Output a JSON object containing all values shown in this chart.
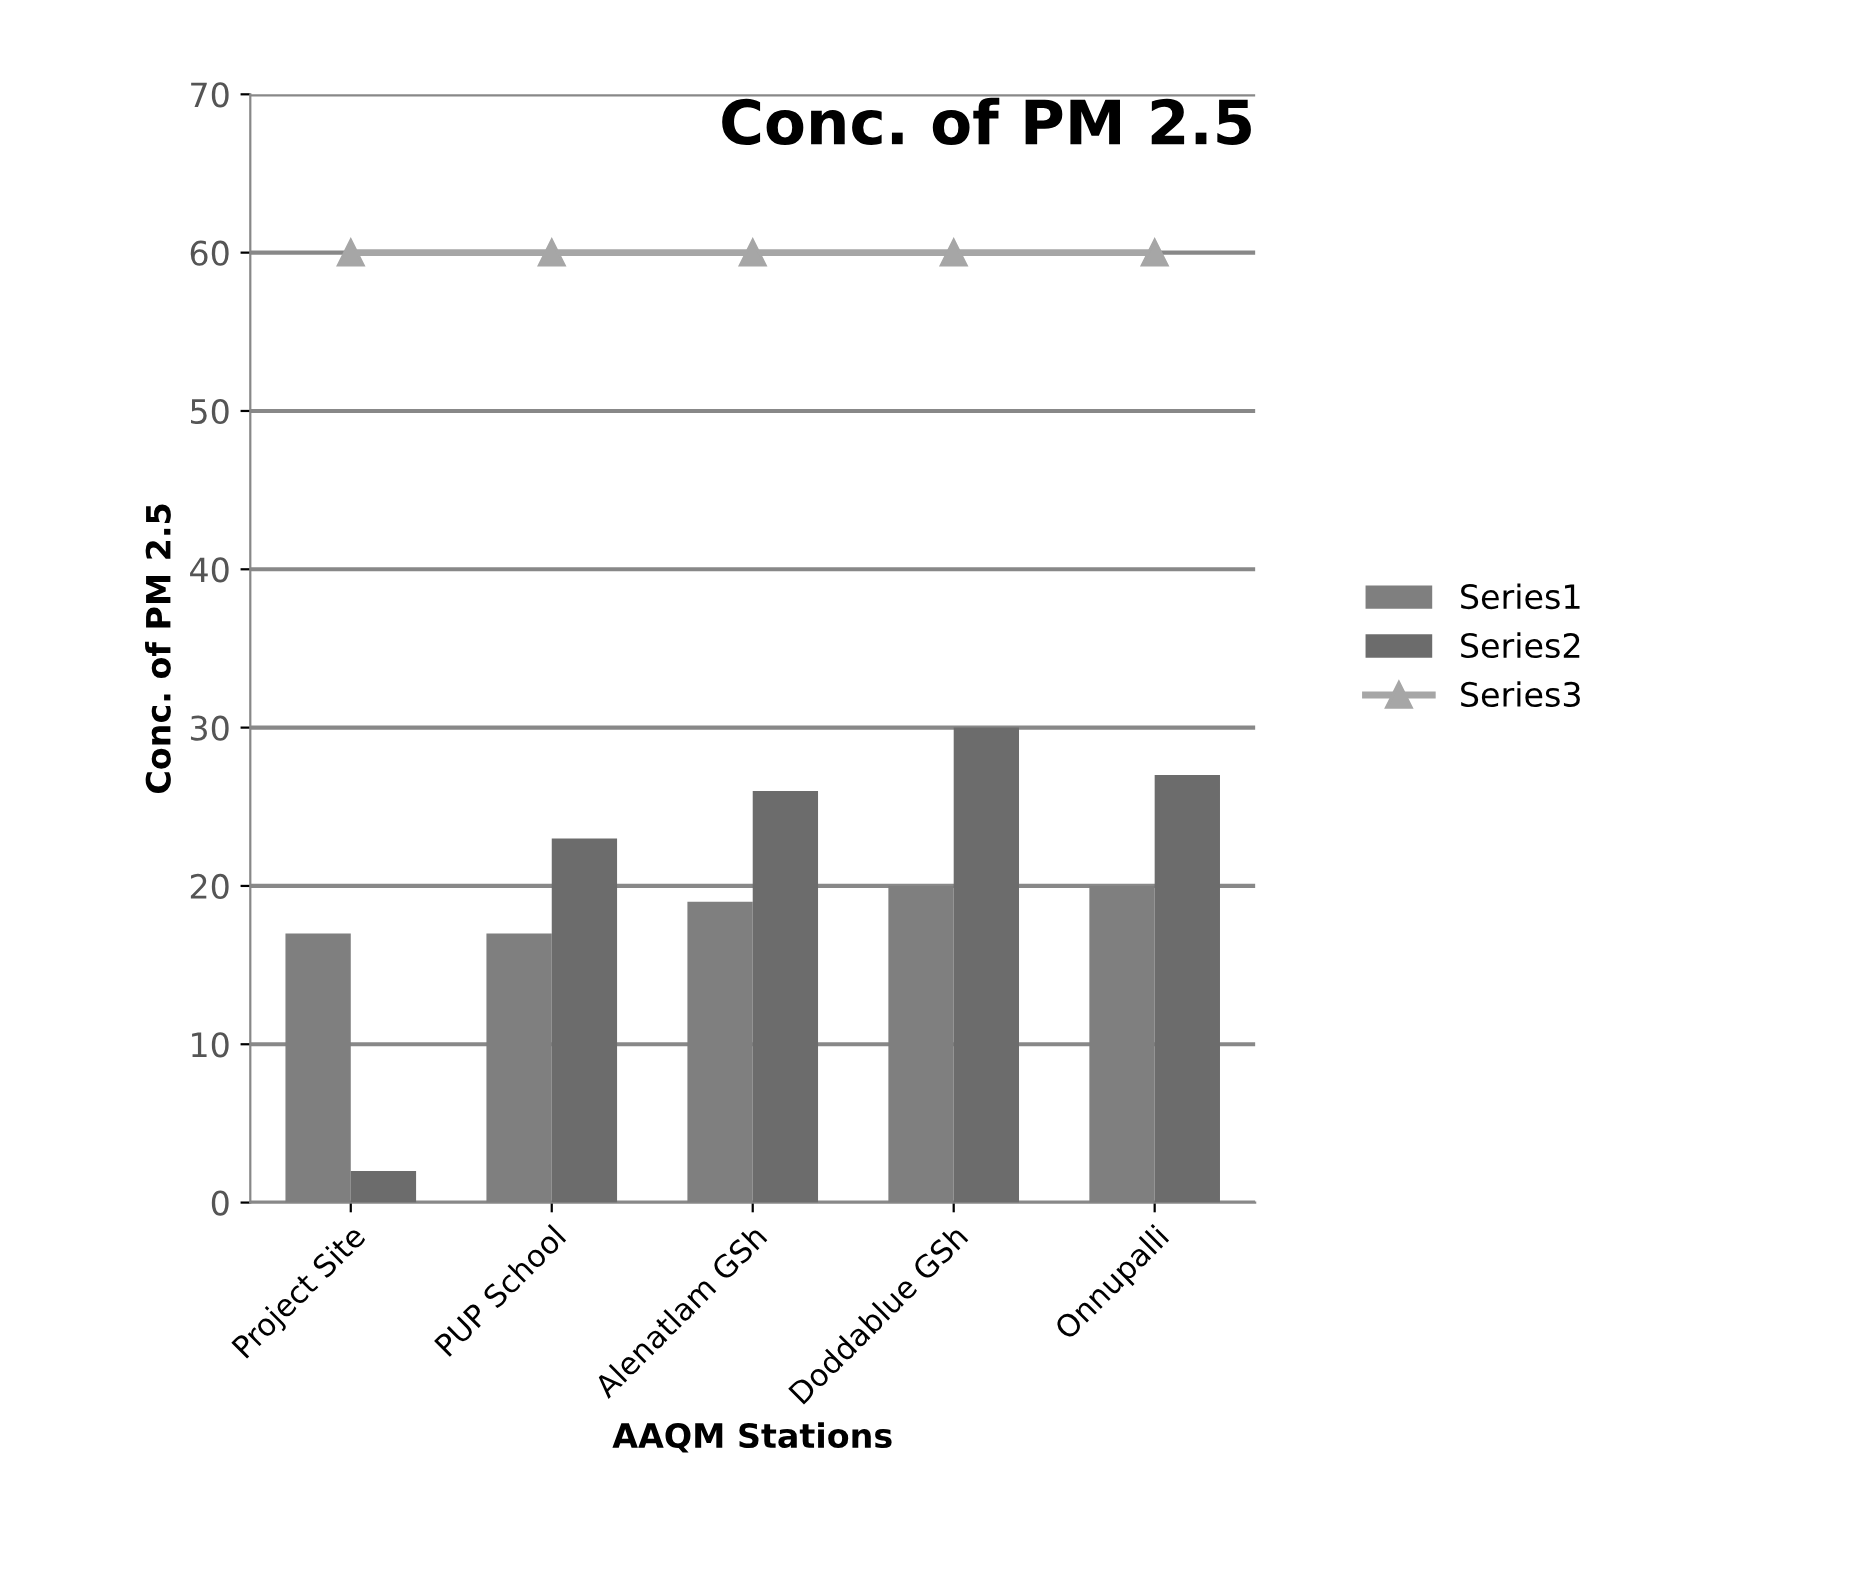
{
  "chart_data": {
    "type": "bar",
    "title": "Conc. of PM 2.5",
    "xlabel": "AAQM Stations",
    "ylabel": "Conc. of PM 2.5",
    "categories": [
      "Project Site",
      "PUP School",
      "Alenatlam GSh",
      "Doddablue GSh",
      "Onnupalli"
    ],
    "series": [
      {
        "name": "Series1",
        "color": "#7f7f7f",
        "values": [
          17,
          17,
          19,
          20,
          20
        ]
      },
      {
        "name": "Series2",
        "color": "#6c6c6c",
        "values": [
          2,
          23,
          26,
          30,
          27
        ]
      },
      {
        "name": "Series3",
        "type": "line",
        "color": "#a6a6a6",
        "marker": "triangle",
        "values": [
          60,
          60,
          60,
          60,
          60
        ]
      }
    ],
    "ylim": [
      0,
      70
    ],
    "yticks": [
      0,
      10,
      20,
      30,
      40,
      50,
      60,
      70
    ],
    "grid": "y",
    "legend": "right"
  }
}
